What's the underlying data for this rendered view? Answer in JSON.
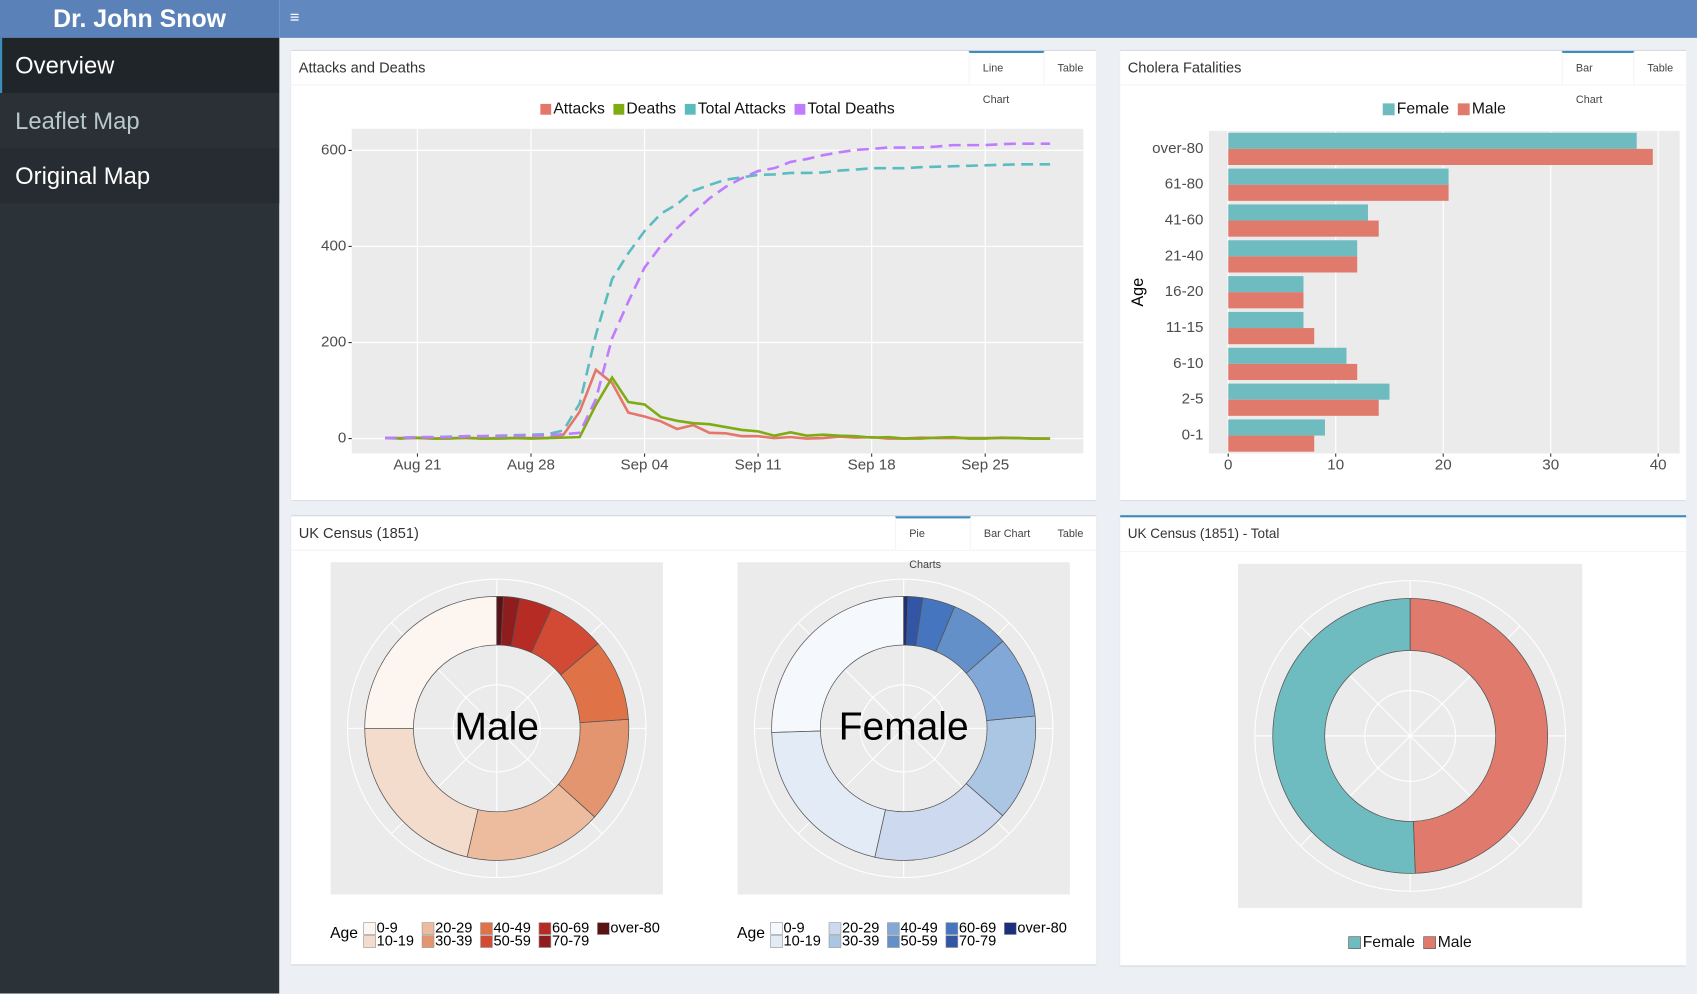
{
  "header": {
    "title": "Dr. John Snow",
    "menu_icon": "≡"
  },
  "sidebar": {
    "items": [
      "Overview",
      "Leaflet Map",
      "Original Map"
    ]
  },
  "panels": [
    {
      "title": "Attacks and Deaths",
      "tabs": [
        "Line Chart",
        "Table"
      ]
    },
    {
      "title": "Cholera Fatalities",
      "tabs": [
        "Bar Chart",
        "Table"
      ]
    },
    {
      "title": "UK Census (1851)",
      "tabs": [
        "Pie Charts",
        "Bar Chart",
        "Table"
      ]
    },
    {
      "title": "UK Census (1851) - Total"
    }
  ],
  "chart_data": [
    {
      "type": "line",
      "categories": [
        "Aug 19",
        "Aug 20",
        "Aug 21",
        "Aug 22",
        "Aug 23",
        "Aug 24",
        "Aug 25",
        "Aug 26",
        "Aug 27",
        "Aug 28",
        "Aug 29",
        "Aug 30",
        "Aug 31",
        "Sep 01",
        "Sep 02",
        "Sep 03",
        "Sep 04",
        "Sep 05",
        "Sep 06",
        "Sep 07",
        "Sep 08",
        "Sep 09",
        "Sep 10",
        "Sep 11",
        "Sep 12",
        "Sep 13",
        "Sep 14",
        "Sep 15",
        "Sep 16",
        "Sep 17",
        "Sep 18",
        "Sep 19",
        "Sep 20",
        "Sep 21",
        "Sep 22",
        "Sep 23",
        "Sep 24",
        "Sep 25",
        "Sep 26",
        "Sep 27",
        "Sep 28",
        "Sep 29"
      ],
      "xticks": [
        "Aug 21",
        "Aug 28",
        "Sep 04",
        "Sep 11",
        "Sep 18",
        "Sep 25"
      ],
      "ylim": [
        -31,
        645
      ],
      "yticks": [
        0,
        200,
        400,
        600
      ],
      "grid": true,
      "legend": "top",
      "series": [
        {
          "name": "Attacks",
          "color": "#e5766a",
          "line": "solid",
          "values": [
            1,
            1,
            1,
            0,
            1,
            1,
            0,
            1,
            1,
            1,
            1,
            8,
            56,
            143,
            116,
            54,
            46,
            36,
            20,
            28,
            12,
            11,
            5,
            5,
            1,
            3,
            0,
            1,
            4,
            2,
            3,
            0,
            0,
            2,
            1,
            1,
            1,
            1,
            1,
            1,
            0,
            0
          ]
        },
        {
          "name": "Deaths",
          "color": "#7fab13",
          "line": "solid",
          "values": [
            1,
            0,
            2,
            0,
            0,
            2,
            0,
            0,
            1,
            0,
            1,
            2,
            3,
            70,
            127,
            76,
            71,
            45,
            37,
            32,
            30,
            24,
            18,
            15,
            6,
            13,
            6,
            8,
            6,
            5,
            2,
            3,
            0,
            0,
            2,
            3,
            0,
            0,
            2,
            1,
            0,
            0
          ]
        },
        {
          "name": "Total Attacks",
          "color": "#5bbcc0",
          "line": "dashed",
          "values": [
            1,
            2,
            3,
            3,
            4,
            5,
            5,
            6,
            7,
            8,
            9,
            17,
            73,
            216,
            332,
            386,
            432,
            468,
            488,
            516,
            528,
            539,
            544,
            549,
            550,
            553,
            553,
            554,
            558,
            560,
            563,
            563,
            563,
            565,
            566,
            567,
            568,
            569,
            570,
            571,
            571,
            571
          ]
        },
        {
          "name": "Total Deaths",
          "color": "#c07cff",
          "line": "dashed",
          "values": [
            1,
            1,
            3,
            3,
            3,
            5,
            5,
            5,
            6,
            6,
            7,
            9,
            12,
            82,
            209,
            285,
            356,
            401,
            438,
            470,
            500,
            524,
            542,
            557,
            563,
            576,
            582,
            590,
            596,
            601,
            603,
            606,
            606,
            606,
            608,
            611,
            611,
            611,
            613,
            614,
            614,
            614
          ]
        }
      ]
    },
    {
      "type": "barh",
      "categories": [
        "0-1",
        "2-5",
        "6-10",
        "11-15",
        "16-20",
        "21-40",
        "41-60",
        "61-80",
        "over-80"
      ],
      "y_label": "Age",
      "xlim": [
        -1.8,
        42
      ],
      "xticks": [
        0,
        10,
        20,
        30,
        40
      ],
      "grid": true,
      "legend": "top",
      "series": [
        {
          "name": "Female",
          "color": "#6fbcc0",
          "values": [
            9,
            15,
            11,
            7,
            7,
            12,
            13,
            20.5,
            38
          ]
        },
        {
          "name": "Male",
          "color": "#e07a6c",
          "values": [
            8,
            14,
            12,
            8,
            7,
            12,
            14,
            20.5,
            39.5
          ]
        }
      ]
    },
    {
      "type": "donut",
      "legend_title": "Age",
      "legend": "bottom",
      "categories": [
        "0-9",
        "10-19",
        "20-29",
        "30-39",
        "40-49",
        "50-59",
        "60-69",
        "70-79",
        "over-80"
      ],
      "series": [
        {
          "name": "Male",
          "colors": [
            "#fdf5f0",
            "#f3dccc",
            "#edbc9f",
            "#e3956f",
            "#e07248",
            "#d24a33",
            "#b62b24",
            "#8f1d1e",
            "#5a1214"
          ],
          "values": [
            25,
            21.4,
            16.9,
            12.8,
            10,
            7.1,
            4,
            2,
            0.8
          ]
        },
        {
          "name": "Female",
          "colors": [
            "#f5f9fd",
            "#e3ebf6",
            "#cdd9ef",
            "#aac6e3",
            "#82a8d8",
            "#6390c9",
            "#4575be",
            "#3355a6",
            "#1c2f7a"
          ],
          "values": [
            25.5,
            21,
            17,
            13,
            10,
            7.2,
            4,
            1.8,
            0.5
          ]
        }
      ]
    },
    {
      "type": "donut",
      "legend": "bottom",
      "categories": [
        "Female",
        "Male"
      ],
      "colors": [
        "#6fbcc0",
        "#e07a6c"
      ],
      "values": [
        50.6,
        49.4
      ]
    }
  ]
}
